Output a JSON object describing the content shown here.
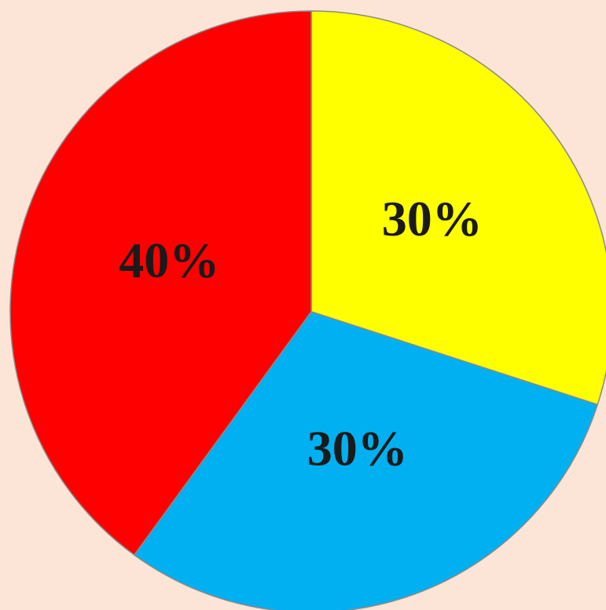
{
  "chart_data": {
    "type": "pie",
    "categories": [
      null,
      null,
      null
    ],
    "values": [
      30,
      30,
      40
    ],
    "value_labels": [
      "30%",
      "30%",
      "40%"
    ],
    "colors": [
      "#ffff00",
      "#00b0f0",
      "#ff0000"
    ]
  }
}
